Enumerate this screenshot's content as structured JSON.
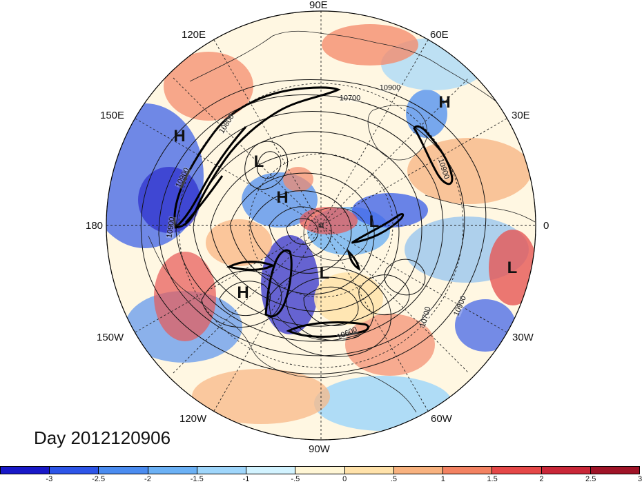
{
  "title": "Day 2012120906",
  "longitude_labels": {
    "lon_90e": "90E",
    "lon_120e": "120E",
    "lon_60e": "60E",
    "lon_150e": "150E",
    "lon_30e": "30E",
    "lon_180": "180",
    "lon_0": "0",
    "lon_150w": "150W",
    "lon_30w": "30W",
    "lon_120w": "120W",
    "lon_60w": "60W",
    "lon_90w": "90W"
  },
  "pressure_systems": [
    {
      "symbol": "H",
      "type": "high"
    },
    {
      "symbol": "H",
      "type": "high"
    },
    {
      "symbol": "L",
      "type": "low"
    },
    {
      "symbol": "H",
      "type": "high"
    },
    {
      "symbol": "L",
      "type": "low"
    },
    {
      "symbol": "L",
      "type": "low"
    },
    {
      "symbol": "H",
      "type": "high"
    },
    {
      "symbol": "L",
      "type": "low"
    }
  ],
  "contour_labels": [
    {
      "text": "10900"
    },
    {
      "text": "10700"
    },
    {
      "text": "10800"
    },
    {
      "text": "10900"
    },
    {
      "text": "10900"
    },
    {
      "text": "10900"
    },
    {
      "text": "10700"
    },
    {
      "text": "10900"
    },
    {
      "text": "10600"
    }
  ],
  "colorbar": {
    "colors": [
      "#1818c8",
      "#2d55e8",
      "#4b8cf0",
      "#6cb1f5",
      "#9fd6fb",
      "#d2f3ff",
      "#fff6d5",
      "#ffe2aa",
      "#f8b27f",
      "#f38262",
      "#e54848",
      "#c92738",
      "#9f1327"
    ],
    "tick_labels": [
      "-3",
      "-2.5",
      "-2",
      "-1.5",
      "-1",
      "-.5",
      "0",
      ".5",
      "1",
      "1.5",
      "2",
      "2.5",
      "3"
    ]
  }
}
